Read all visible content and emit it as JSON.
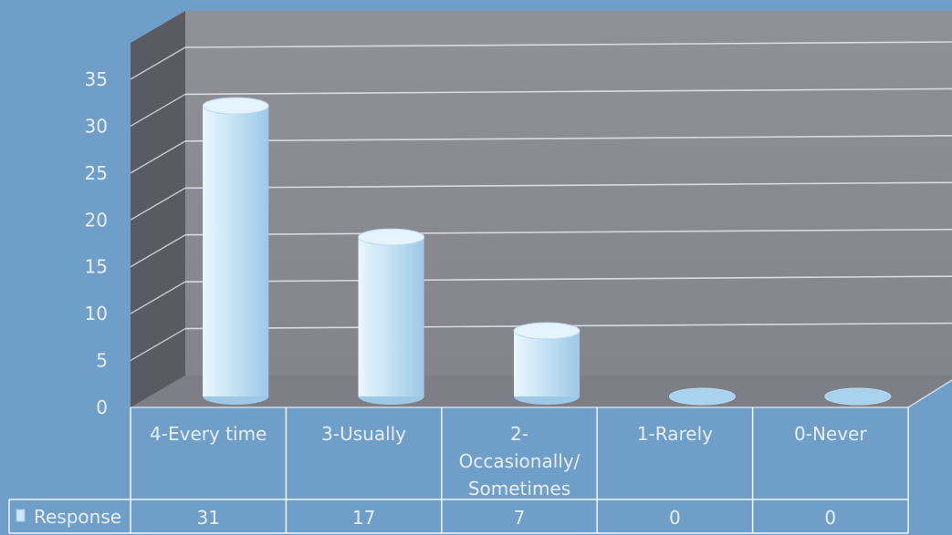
{
  "chart_data": {
    "type": "bar",
    "style": "3d-cylinder",
    "title": "",
    "xlabel": "",
    "ylabel": "",
    "categories": [
      [
        "4-Every time"
      ],
      [
        "3-Usually"
      ],
      [
        "2-",
        "Occasionally/",
        "Sometimes"
      ],
      [
        "1-Rarely"
      ],
      [
        "0-Never"
      ]
    ],
    "series": [
      {
        "name": "Response",
        "values": [
          31,
          17,
          7,
          0,
          0
        ]
      }
    ],
    "ylim": [
      0,
      35
    ],
    "yticks": [
      "0",
      "5",
      "10",
      "15",
      "20",
      "25",
      "30",
      "35"
    ],
    "grid": true,
    "legend": "data-table",
    "data_table": true,
    "colors": {
      "background": "#6f9fc9",
      "back_wall": "#8d8e96",
      "floor": "#7d7e86",
      "side_wall": "#5a5b62",
      "bar": "#c8e4f6",
      "grid": "#e2e2e8",
      "text": "#e8eef6"
    }
  }
}
